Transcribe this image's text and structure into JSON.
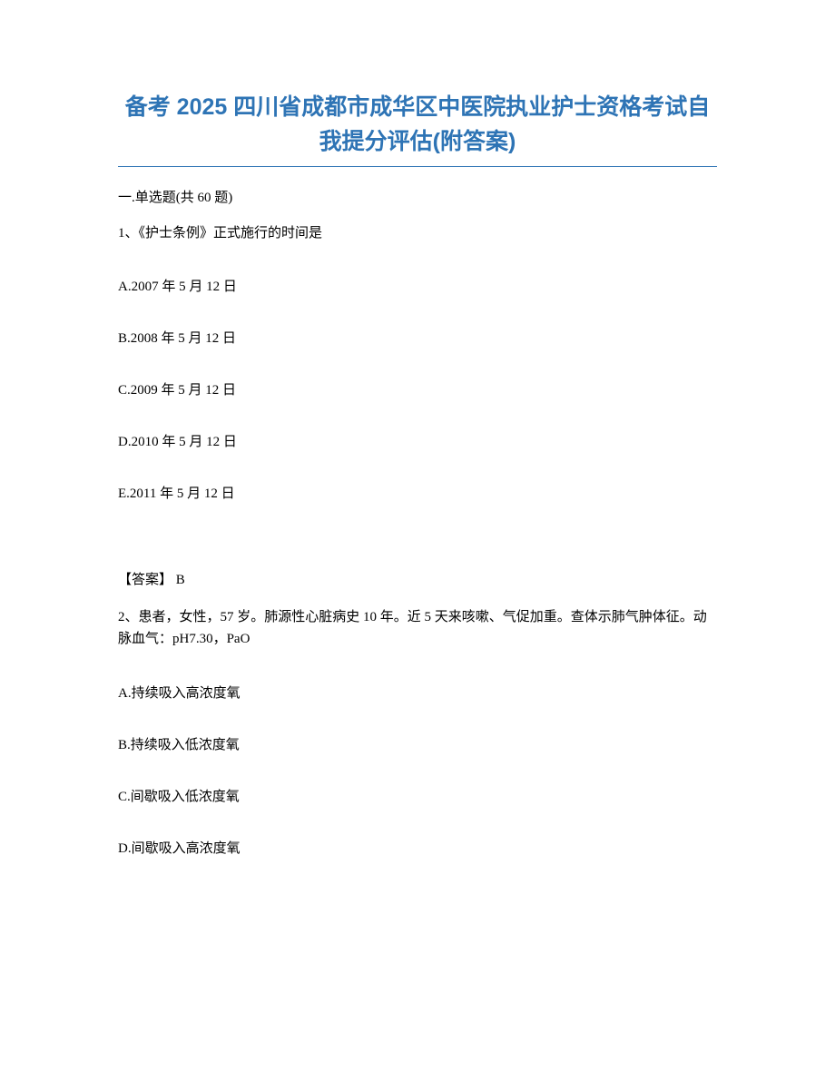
{
  "title": {
    "line1": "备考 2025 四川省成都市成华区中医院执业护士资格考试自",
    "line2": "我提分评估(附答案)",
    "color": "#2e74b5",
    "fontsize": 25,
    "underline_color": "#2e74b5"
  },
  "section_header": "一.单选题(共 60 题)",
  "question1": {
    "stem": "1、《护士条例》正式施行的时间是",
    "options": {
      "A": "A.2007 年 5 月 12 日",
      "B": "B.2008 年 5 月 12 日",
      "C": "C.2009 年 5 月 12 日",
      "D": "D.2010 年 5 月 12 日",
      "E": "E.2011 年 5 月 12 日"
    },
    "answer": "【答案】  B"
  },
  "question2": {
    "stem": "2、患者，女性，57 岁。肺源性心脏病史 10 年。近 5 天来咳嗽、气促加重。查体示肺气肿体征。动脉血气：pH7.30，PaO",
    "options": {
      "A": "A.持续吸入高浓度氧",
      "B": "B.持续吸入低浓度氧",
      "C": "C.间歇吸入低浓度氧",
      "D": "D.间歇吸入高浓度氧"
    }
  },
  "text_color": "#000000",
  "body_fontsize": 15,
  "background_color": "#ffffff"
}
